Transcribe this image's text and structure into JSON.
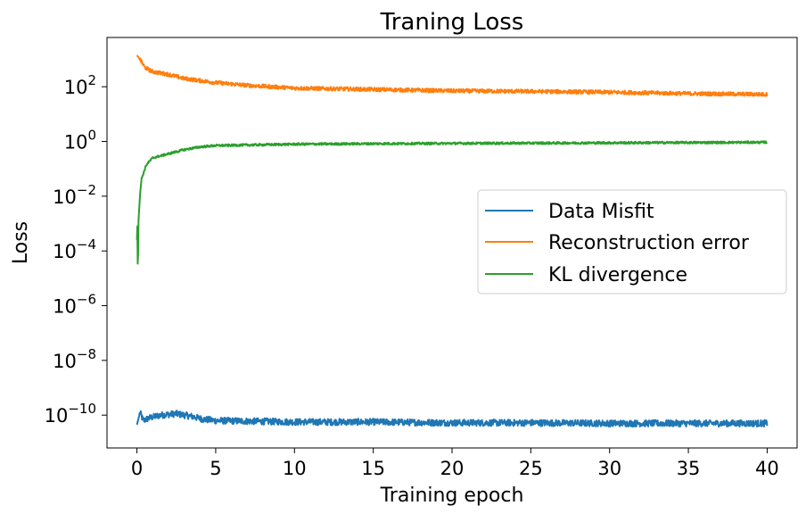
{
  "chart_data": {
    "type": "line",
    "title": "Traning Loss",
    "xlabel": "Training epoch",
    "ylabel": "Loss",
    "xlim": [
      -1.9,
      41.9
    ],
    "ylim_log10": [
      -11.2,
      3.8
    ],
    "y_scale": "log",
    "x_ticks": [
      0,
      5,
      10,
      15,
      20,
      25,
      30,
      35,
      40
    ],
    "y_ticks": [
      {
        "exp": 2,
        "base": "10",
        "sup": "2"
      },
      {
        "exp": 0,
        "base": "10",
        "sup": "0"
      },
      {
        "exp": -2,
        "base": "10",
        "sup": "−2"
      },
      {
        "exp": -4,
        "base": "10",
        "sup": "−4"
      },
      {
        "exp": -6,
        "base": "10",
        "sup": "−6"
      },
      {
        "exp": -8,
        "base": "10",
        "sup": "−8"
      },
      {
        "exp": -10,
        "base": "10",
        "sup": "−10"
      }
    ],
    "grid": false,
    "legend": "center-right",
    "series": [
      {
        "name": "Data Misfit",
        "color": "#1f77b4",
        "noise": 0.12,
        "points": [
          [
            0,
            -10.35
          ],
          [
            0.2,
            -9.9
          ],
          [
            0.4,
            -10.2
          ],
          [
            0.8,
            -10.1
          ],
          [
            1.5,
            -10.0
          ],
          [
            2.5,
            -9.95
          ],
          [
            3.5,
            -10.05
          ],
          [
            4.2,
            -10.15
          ],
          [
            5,
            -10.2
          ],
          [
            8,
            -10.23
          ],
          [
            10,
            -10.25
          ],
          [
            15,
            -10.25
          ],
          [
            20,
            -10.28
          ],
          [
            25,
            -10.28
          ],
          [
            30,
            -10.3
          ],
          [
            35,
            -10.3
          ],
          [
            40,
            -10.3
          ]
        ]
      },
      {
        "name": "Reconstruction error",
        "color": "#ff7f0e",
        "noise": 0.07,
        "points": [
          [
            0,
            3.15
          ],
          [
            0.2,
            3.0
          ],
          [
            0.5,
            2.7
          ],
          [
            1,
            2.55
          ],
          [
            2,
            2.45
          ],
          [
            3,
            2.3
          ],
          [
            5,
            2.15
          ],
          [
            7,
            2.05
          ],
          [
            10,
            1.95
          ],
          [
            15,
            1.9
          ],
          [
            20,
            1.85
          ],
          [
            25,
            1.83
          ],
          [
            30,
            1.8
          ],
          [
            35,
            1.75
          ],
          [
            40,
            1.72
          ]
        ]
      },
      {
        "name": "KL divergence",
        "color": "#2ca02c",
        "noise": 0.04,
        "points": [
          [
            0,
            -3.6
          ],
          [
            0.03,
            -3.0
          ],
          [
            0.06,
            -5.2
          ],
          [
            0.09,
            -3.0
          ],
          [
            0.2,
            -1.9
          ],
          [
            0.3,
            -1.35
          ],
          [
            0.6,
            -0.85
          ],
          [
            1,
            -0.6
          ],
          [
            2,
            -0.45
          ],
          [
            3,
            -0.3
          ],
          [
            4,
            -0.2
          ],
          [
            5,
            -0.15
          ],
          [
            7,
            -0.13
          ],
          [
            10,
            -0.1
          ],
          [
            15,
            -0.08
          ],
          [
            20,
            -0.07
          ],
          [
            25,
            -0.06
          ],
          [
            30,
            -0.05
          ],
          [
            35,
            -0.04
          ],
          [
            40,
            -0.03
          ]
        ]
      }
    ]
  }
}
